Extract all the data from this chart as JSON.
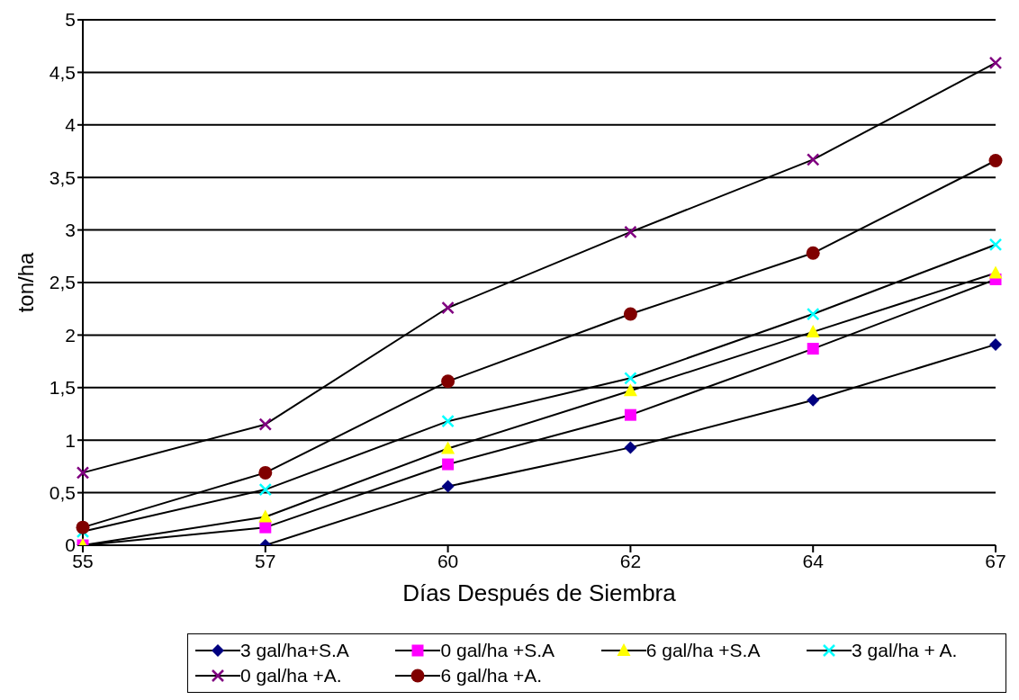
{
  "chart_data": {
    "type": "line",
    "xlabel": "Días Después de Siembra",
    "ylabel": "ton/ha",
    "categories": [
      "55",
      "57",
      "60",
      "62",
      "64",
      "67"
    ],
    "ylim": [
      0,
      5
    ],
    "yticks": [
      0,
      {
        "value": 0.5,
        "label": "0,5"
      },
      1,
      {
        "value": 1.5,
        "label": "1,5"
      },
      2,
      {
        "value": 2.5,
        "label": "2,5"
      },
      3,
      {
        "value": 3.5,
        "label": "3,5"
      },
      4,
      {
        "value": 4.5,
        "label": "4,5"
      },
      5
    ],
    "grid": "y",
    "legend": "bottom",
    "series": [
      {
        "name": "3 gal/ha+S.A",
        "color": "#000080",
        "marker": "diamond",
        "values": [
          0,
          0,
          0.56,
          0.93,
          1.38,
          1.91
        ]
      },
      {
        "name": "0 gal/ha +S.A",
        "color": "#ff00ff",
        "marker": "square",
        "values": [
          0,
          0.17,
          0.77,
          1.24,
          1.87,
          2.53
        ]
      },
      {
        "name": "6 gal/ha +S.A",
        "color": "#ffff00",
        "marker": "triangle",
        "values": [
          0,
          0.27,
          0.92,
          1.47,
          2.03,
          2.59
        ]
      },
      {
        "name": "3 gal/ha + A.",
        "color": "#00ffff",
        "marker": "cross",
        "values": [
          0.13,
          0.53,
          1.18,
          1.59,
          2.2,
          2.86
        ]
      },
      {
        "name": "0 gal/ha +A.",
        "color": "#800080",
        "marker": "cross",
        "values": [
          0.69,
          1.15,
          2.26,
          2.98,
          3.67,
          4.59
        ]
      },
      {
        "name": "6 gal/ha +A.",
        "color": "#800000",
        "marker": "circle",
        "values": [
          0.17,
          0.69,
          1.56,
          2.2,
          2.78,
          3.66
        ]
      }
    ]
  }
}
